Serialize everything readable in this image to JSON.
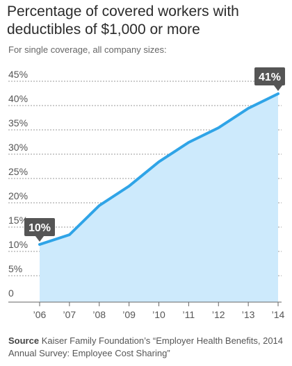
{
  "title": "Percentage of covered workers with deductibles of $1,000 or more",
  "subtitle": "For single coverage, all company sizes:",
  "source": {
    "label": "Source",
    "text": "Kaiser Family Foundation’s “Employer Health Benefits, 2014 Annual Survey: Employee Cost Sharing”"
  },
  "colors": {
    "line": "#2fa4e7",
    "area": "#cdeafc",
    "callout": "#555555",
    "grid": "#999999",
    "axis": "#666666"
  },
  "chart_data": {
    "type": "area",
    "x": [
      "’06",
      "’07",
      "’08",
      "’09",
      "’10",
      "’11",
      "’12",
      "’13",
      "’14"
    ],
    "values": [
      10,
      12,
      18,
      22,
      27,
      31,
      34,
      38,
      41
    ],
    "yticks": [
      "0",
      "5%",
      "10%",
      "15%",
      "20%",
      "25%",
      "30%",
      "35%",
      "40%",
      "45%"
    ],
    "ylim": [
      0,
      45
    ],
    "grid": true,
    "annotations": [
      {
        "index": 0,
        "label": "10%"
      },
      {
        "index": 8,
        "label": "41%"
      }
    ]
  }
}
